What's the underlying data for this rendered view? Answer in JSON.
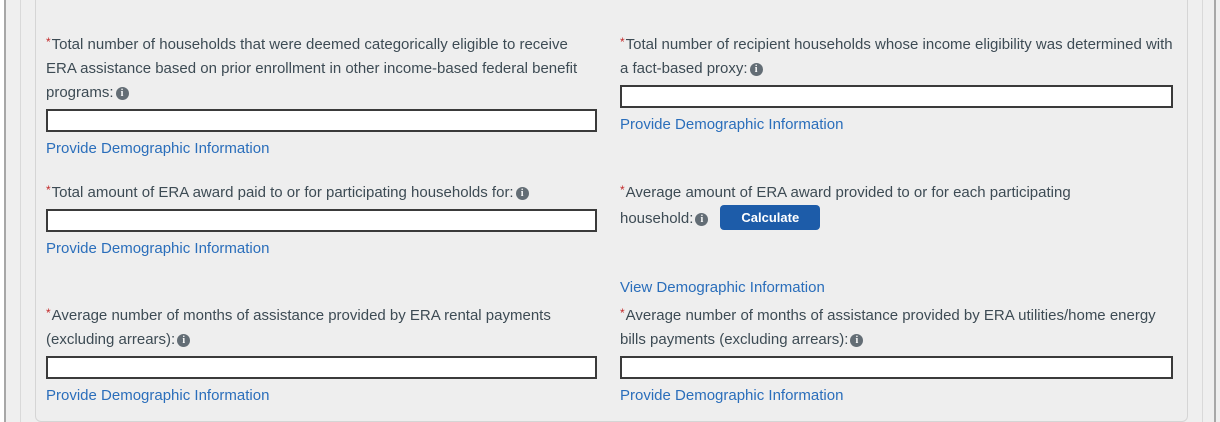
{
  "icons": {
    "info_glyph": "i"
  },
  "colors": {
    "link": "#2a6ebb",
    "required_asterisk": "#c32b2b",
    "button_background": "#1d5ca9",
    "button_text": "#ffffff",
    "label_text": "#3d4b54",
    "panel_background": "#eeeeee",
    "panel_border": "#d5d5d5"
  },
  "form": {
    "required_marker": "*",
    "fields": {
      "categorically_eligible": {
        "label": "Total number of households that were deemed categorically eligible to receive ERA assistance based on prior enrollment in other income-based federal benefit programs:",
        "value": "",
        "link_label": "Provide Demographic Information"
      },
      "fact_based_proxy": {
        "label": "Total number of recipient households whose income eligibility was determined with a fact-based proxy:",
        "value": "",
        "link_label": "Provide Demographic Information"
      },
      "total_era_award": {
        "label": "Total amount of ERA award paid to or for participating households for:",
        "value": "",
        "link_label": "Provide Demographic Information"
      },
      "average_era_award": {
        "label": "Average amount of ERA award provided to or for each participating household:",
        "button_label": "Calculate",
        "link_label": "View Demographic Information"
      },
      "avg_months_rental": {
        "label": "Average number of months of assistance provided by ERA rental payments (excluding arrears):",
        "value": "",
        "link_label": "Provide Demographic Information"
      },
      "avg_months_utilities": {
        "label": "Average number of months of assistance provided by ERA utilities/home energy bills payments (excluding arrears):",
        "value": "",
        "link_label": "Provide Demographic Information"
      }
    }
  }
}
